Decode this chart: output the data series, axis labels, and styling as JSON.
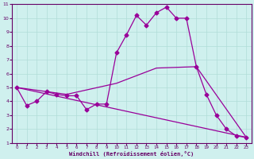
{
  "xlabel": "Windchill (Refroidissement éolien,°C)",
  "background_color": "#cff0ee",
  "line_color": "#990099",
  "spine_color": "#660066",
  "tick_color": "#660066",
  "xlim": [
    -0.5,
    23.5
  ],
  "ylim": [
    1,
    11
  ],
  "xticks": [
    0,
    1,
    2,
    3,
    4,
    5,
    6,
    7,
    8,
    9,
    10,
    11,
    12,
    13,
    14,
    15,
    16,
    17,
    18,
    19,
    20,
    21,
    22,
    23
  ],
  "yticks": [
    1,
    2,
    3,
    4,
    5,
    6,
    7,
    8,
    9,
    10,
    11
  ],
  "line1_x": [
    0,
    1,
    2,
    3,
    4,
    5,
    6,
    7,
    8,
    9,
    10,
    11,
    12,
    13,
    14,
    15,
    16,
    17,
    18,
    19,
    20,
    21,
    22,
    23
  ],
  "line1_y": [
    5.0,
    3.7,
    4.0,
    4.7,
    4.5,
    4.4,
    4.4,
    3.4,
    3.8,
    3.8,
    7.5,
    8.8,
    10.2,
    9.5,
    10.4,
    10.8,
    10.0,
    10.0,
    6.5,
    4.5,
    3.0,
    2.0,
    1.5,
    1.4
  ],
  "line2_x": [
    0,
    23
  ],
  "line2_y": [
    5.0,
    1.4
  ],
  "line3_x": [
    0,
    5,
    10,
    14,
    18,
    23
  ],
  "line3_y": [
    5.0,
    4.5,
    5.3,
    6.4,
    6.5,
    1.4
  ],
  "grid_color": "#b0ddd8",
  "marker": "D",
  "markersize": 2.5,
  "linewidth": 0.9
}
